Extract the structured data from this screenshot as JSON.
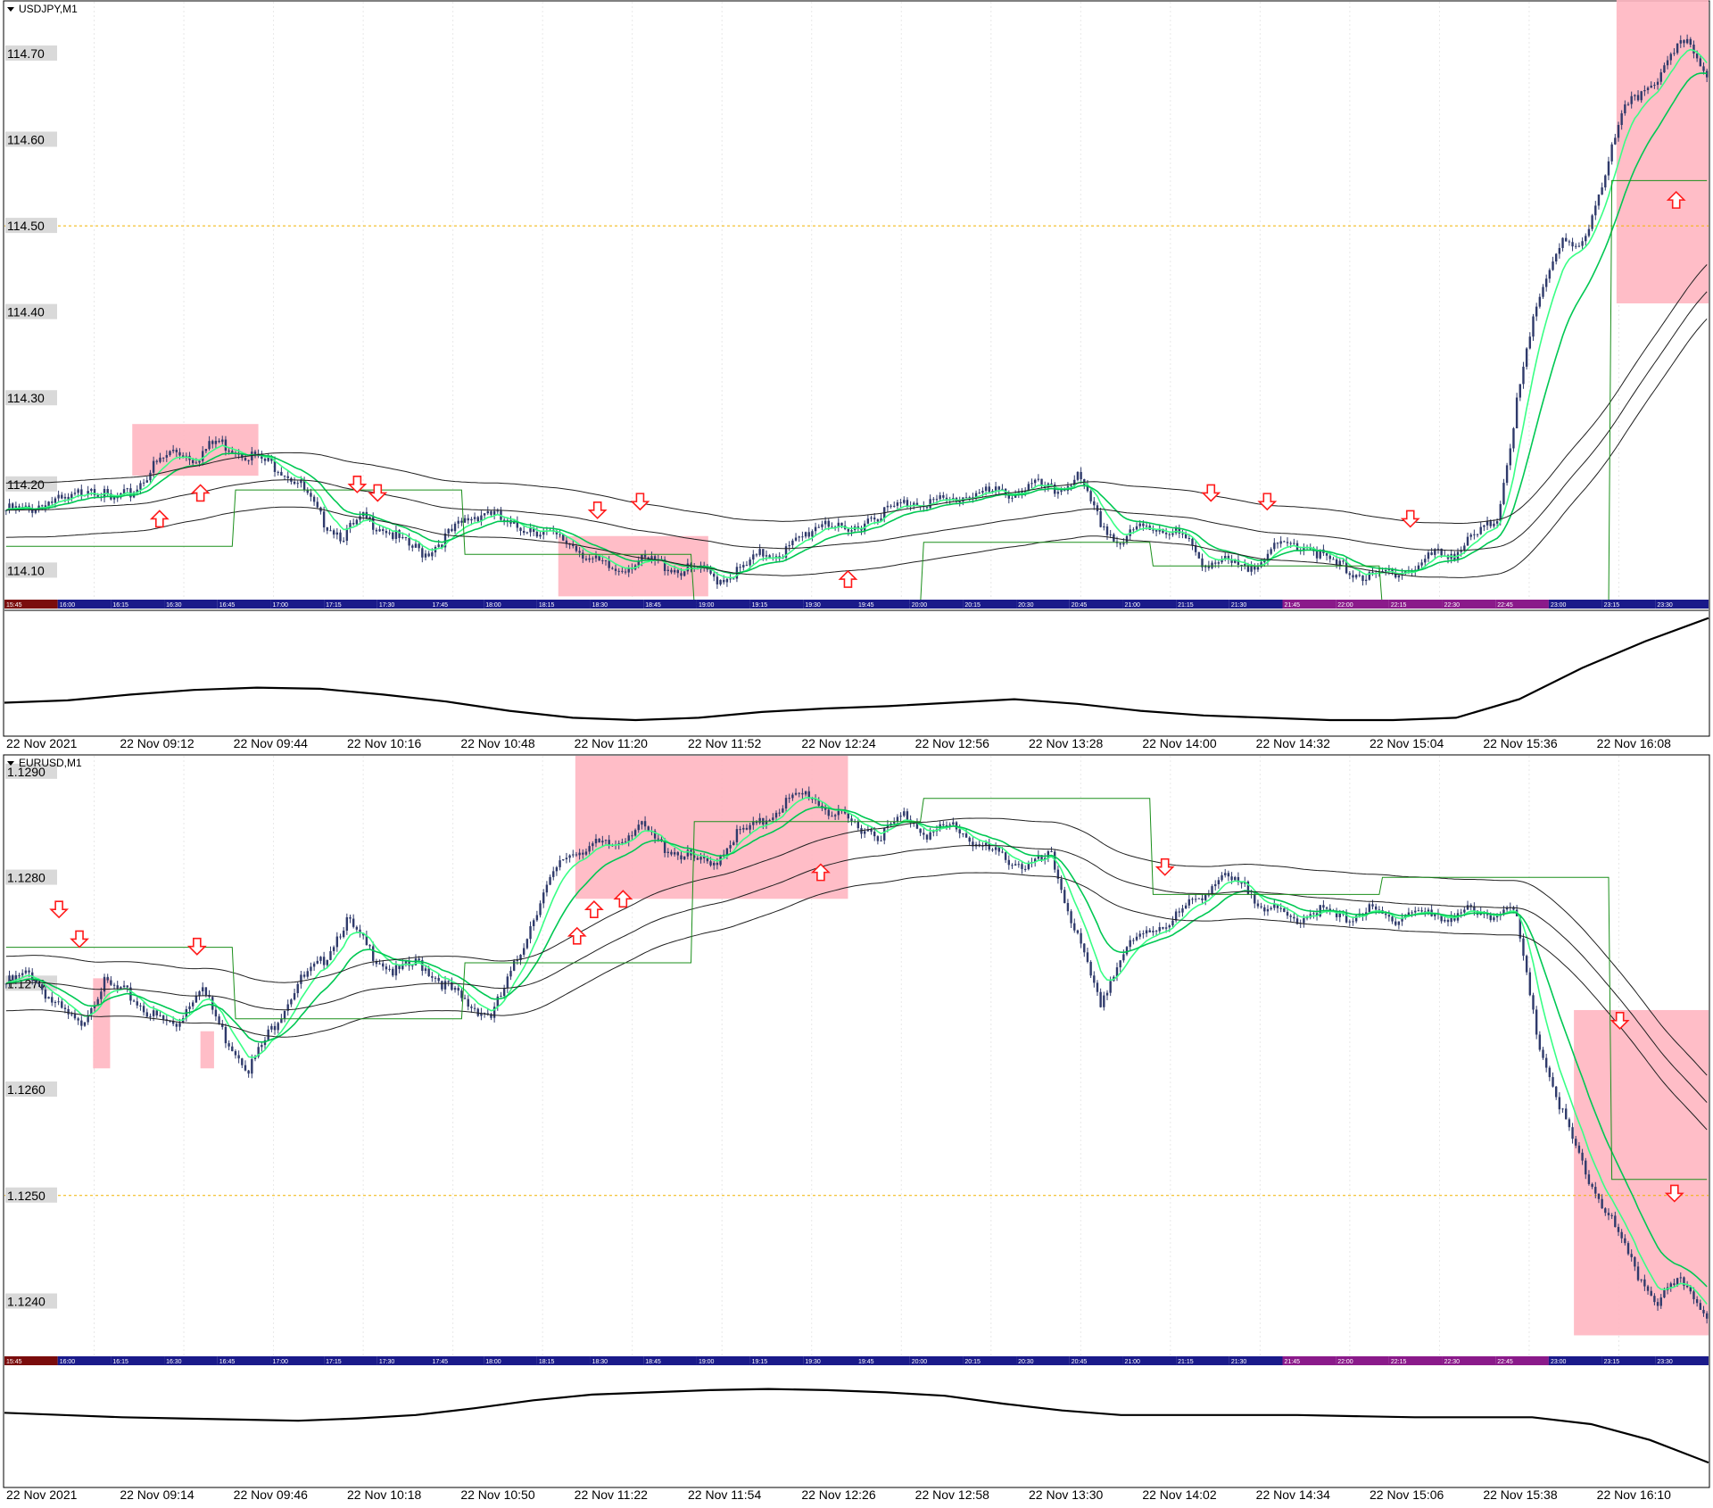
{
  "colors": {
    "highlight": "#ffb6c1",
    "candle": "#2f3a6b",
    "ema_fast": "#00c853",
    "ema_slow": "#39ff85",
    "envelope": "#202020",
    "level_line": "#1b8f1b",
    "arrow": "#ff1a1a",
    "grid_dot": "#f0b400",
    "session_bar": [
      "#7a0c0c",
      "#1a1a8a",
      "#8a1a8a"
    ]
  },
  "charts": [
    {
      "id": "usdjpy",
      "symbol_label": "USDJPY,M1",
      "price_axis": {
        "labels": [
          "114.70",
          "114.60",
          "114.50",
          "114.40",
          "114.30",
          "114.20",
          "114.10"
        ],
        "ymin": 114.06,
        "ymax": 114.76
      },
      "horizontal_level": 114.5,
      "session_times": [
        "15:45",
        "16:00",
        "16:15",
        "16:30",
        "16:45",
        "17:00",
        "17:15",
        "17:30",
        "17:45",
        "18:00",
        "18:15",
        "18:30",
        "18:45",
        "19:00",
        "19:15",
        "19:30",
        "19:45",
        "20:00",
        "20:15",
        "20:30",
        "20:45",
        "21:00",
        "21:15",
        "21:30",
        "21:45",
        "22:00",
        "22:15",
        "22:30",
        "22:45",
        "23:00",
        "23:15",
        "23:30"
      ],
      "time_axis": [
        "22 Nov 2021",
        "22 Nov 09:12",
        "22 Nov 09:44",
        "22 Nov 10:16",
        "22 Nov 10:48",
        "22 Nov 11:20",
        "22 Nov 11:52",
        "22 Nov 12:24",
        "22 Nov 12:56",
        "22 Nov 13:28",
        "22 Nov 14:00",
        "22 Nov 14:32",
        "22 Nov 15:04",
        "22 Nov 15:36",
        "22 Nov 16:08"
      ],
      "price_path": [
        114.17,
        114.17,
        114.18,
        114.18,
        114.2,
        114.18,
        114.19,
        114.22,
        114.24,
        114.23,
        114.25,
        114.24,
        114.23,
        114.22,
        114.2,
        114.16,
        114.14,
        114.16,
        114.15,
        114.13,
        114.12,
        114.14,
        114.16,
        114.17,
        114.15,
        114.15,
        114.14,
        114.13,
        114.11,
        114.1,
        114.11,
        114.11,
        114.1,
        114.1,
        114.09,
        114.1,
        114.12,
        114.12,
        114.14,
        114.16,
        114.14,
        114.16,
        114.17,
        114.18,
        114.18,
        114.18,
        114.19,
        114.19,
        114.19,
        114.2,
        114.19,
        114.21,
        114.16,
        114.13,
        114.15,
        114.15,
        114.14,
        114.11,
        114.11,
        114.1,
        114.12,
        114.13,
        114.13,
        114.11,
        114.1,
        114.09,
        114.1,
        114.1,
        114.12,
        114.12,
        114.14,
        114.16,
        114.3,
        114.42,
        114.48,
        114.47,
        114.55,
        114.63,
        114.66,
        114.68,
        114.72,
        114.68
      ],
      "highlight_boxes": [
        {
          "x0": 0.075,
          "x1": 0.149,
          "y0": 114.27,
          "y1": 114.21
        },
        {
          "x0": 0.325,
          "x1": 0.413,
          "y0": 114.14,
          "y1": 114.07
        },
        {
          "x0": 0.946,
          "x1": 1.0,
          "y0": 114.77,
          "y1": 114.41
        }
      ],
      "arrows": [
        {
          "x": 0.091,
          "y": 114.16,
          "dir": "up"
        },
        {
          "x": 0.115,
          "y": 114.19,
          "dir": "up"
        },
        {
          "x": 0.207,
          "y": 114.2,
          "dir": "down"
        },
        {
          "x": 0.219,
          "y": 114.19,
          "dir": "down"
        },
        {
          "x": 0.348,
          "y": 114.17,
          "dir": "down"
        },
        {
          "x": 0.373,
          "y": 114.18,
          "dir": "down"
        },
        {
          "x": 0.495,
          "y": 114.09,
          "dir": "up"
        },
        {
          "x": 0.708,
          "y": 114.19,
          "dir": "down"
        },
        {
          "x": 0.741,
          "y": 114.18,
          "dir": "down"
        },
        {
          "x": 0.825,
          "y": 114.16,
          "dir": "down"
        },
        {
          "x": 0.981,
          "y": 114.53,
          "dir": "up"
        }
      ],
      "oscillator_path": [
        0.25,
        0.27,
        0.32,
        0.36,
        0.38,
        0.37,
        0.32,
        0.26,
        0.18,
        0.12,
        0.1,
        0.12,
        0.17,
        0.2,
        0.22,
        0.25,
        0.28,
        0.24,
        0.18,
        0.14,
        0.12,
        0.1,
        0.1,
        0.12,
        0.28,
        0.55,
        0.78,
        0.98
      ]
    },
    {
      "id": "eurusd",
      "symbol_label": "EURUSD,M1",
      "price_axis": {
        "labels": [
          "1.1290",
          "1.1280",
          "1.1270",
          "1.1260",
          "1.1250",
          "1.1240"
        ],
        "ymin": 1.12344,
        "ymax": 1.12915
      },
      "horizontal_level": 1.125,
      "session_times": [
        "15:45",
        "16:00",
        "16:15",
        "16:30",
        "16:45",
        "17:00",
        "17:15",
        "17:30",
        "17:45",
        "18:00",
        "18:15",
        "18:30",
        "18:45",
        "19:00",
        "19:15",
        "19:30",
        "19:45",
        "20:00",
        "20:15",
        "20:30",
        "20:45",
        "21:00",
        "21:15",
        "21:30",
        "21:45",
        "22:00",
        "22:15",
        "22:30",
        "22:45",
        "23:00",
        "23:15",
        "23:30"
      ],
      "time_axis": [
        "22 Nov 2021",
        "22 Nov 09:14",
        "22 Nov 09:46",
        "22 Nov 10:18",
        "22 Nov 10:50",
        "22 Nov 11:22",
        "22 Nov 11:54",
        "22 Nov 12:26",
        "22 Nov 12:58",
        "22 Nov 13:30",
        "22 Nov 14:02",
        "22 Nov 14:34",
        "22 Nov 15:06",
        "22 Nov 15:38",
        "22 Nov 16:10"
      ],
      "price_path": [
        1.127,
        1.1271,
        1.1268,
        1.1266,
        1.127,
        1.1269,
        1.1267,
        1.1266,
        1.127,
        1.1265,
        1.1262,
        1.1266,
        1.127,
        1.1272,
        1.1276,
        1.1273,
        1.1271,
        1.1272,
        1.127,
        1.1268,
        1.1267,
        1.1272,
        1.1278,
        1.1282,
        1.1283,
        1.1283,
        1.1285,
        1.1283,
        1.1282,
        1.1281,
        1.1284,
        1.1285,
        1.1287,
        1.1288,
        1.1286,
        1.1285,
        1.1284,
        1.1286,
        1.1284,
        1.1285,
        1.1283,
        1.1282,
        1.1281,
        1.1282,
        1.1275,
        1.1268,
        1.1273,
        1.1275,
        1.1276,
        1.1278,
        1.128,
        1.1279,
        1.1277,
        1.1276,
        1.1277,
        1.1276,
        1.1277,
        1.1276,
        1.1277,
        1.1276,
        1.1277,
        1.1276,
        1.1278,
        1.1265,
        1.1258,
        1.1252,
        1.1248,
        1.1243,
        1.124,
        1.1242,
        1.1239
      ],
      "highlight_boxes": [
        {
          "x0": 0.052,
          "x1": 0.062,
          "y0": 1.12705,
          "y1": 1.1262
        },
        {
          "x0": 0.115,
          "x1": 0.123,
          "y0": 1.12655,
          "y1": 1.1262
        },
        {
          "x0": 0.335,
          "x1": 0.495,
          "y0": 1.12915,
          "y1": 1.1278
        },
        {
          "x0": 0.921,
          "x1": 1.0,
          "y0": 1.12675,
          "y1": 1.12368
        }
      ],
      "arrows": [
        {
          "x": 0.032,
          "y": 1.1277,
          "dir": "down"
        },
        {
          "x": 0.044,
          "y": 1.12742,
          "dir": "down"
        },
        {
          "x": 0.113,
          "y": 1.12735,
          "dir": "down"
        },
        {
          "x": 0.336,
          "y": 1.12745,
          "dir": "up"
        },
        {
          "x": 0.346,
          "y": 1.1277,
          "dir": "up"
        },
        {
          "x": 0.363,
          "y": 1.1278,
          "dir": "up"
        },
        {
          "x": 0.479,
          "y": 1.12805,
          "dir": "up"
        },
        {
          "x": 0.681,
          "y": 1.1281,
          "dir": "down"
        },
        {
          "x": 0.948,
          "y": 1.12665,
          "dir": "down"
        },
        {
          "x": 0.98,
          "y": 1.12502,
          "dir": "down"
        }
      ],
      "oscillator_path": [
        0.62,
        0.6,
        0.58,
        0.57,
        0.56,
        0.55,
        0.57,
        0.6,
        0.66,
        0.73,
        0.78,
        0.8,
        0.82,
        0.83,
        0.82,
        0.8,
        0.77,
        0.7,
        0.64,
        0.6,
        0.6,
        0.6,
        0.6,
        0.59,
        0.58,
        0.58,
        0.58,
        0.52,
        0.38,
        0.18
      ]
    }
  ]
}
